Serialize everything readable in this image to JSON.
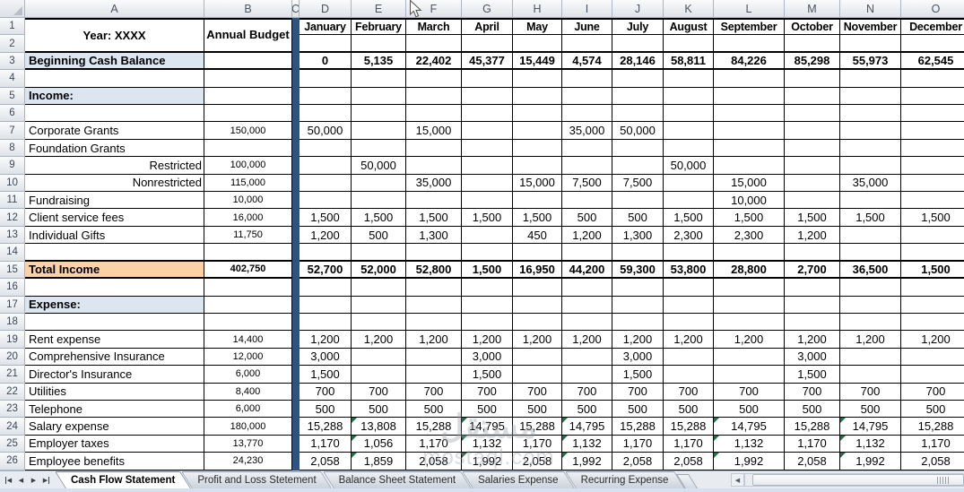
{
  "column_letters": [
    "A",
    "B",
    "C",
    "D",
    "E",
    "F",
    "G",
    "H",
    "I",
    "J",
    "K",
    "L",
    "M",
    "N",
    "O"
  ],
  "row_count": 26,
  "header_box": {
    "year_label": "Year: XXXX",
    "annual_budget_label": "Annual Budget"
  },
  "months": [
    "January",
    "February",
    "March",
    "April",
    "May",
    "June",
    "July",
    "August",
    "September",
    "October",
    "November",
    "December"
  ],
  "sheet_rows": [
    {
      "num": 3,
      "label": "Beginning Cash Balance",
      "style": "balance",
      "budget": "",
      "months": [
        "0",
        "5,135",
        "22,402",
        "45,377",
        "15,449",
        "4,574",
        "28,146",
        "58,811",
        "84,226",
        "85,298",
        "55,973",
        "62,545"
      ]
    },
    {
      "num": 5,
      "label": "Income:",
      "style": "section"
    },
    {
      "num": 7,
      "label": "Corporate Grants",
      "budget": "150,000",
      "months": [
        "50,000",
        "",
        "15,000",
        "",
        "",
        "35,000",
        "50,000",
        "",
        "",
        "",
        "",
        ""
      ]
    },
    {
      "num": 8,
      "label": "Foundation Grants"
    },
    {
      "num": 9,
      "label": "Restricted",
      "align": "right",
      "budget": "100,000",
      "months": [
        "",
        "50,000",
        "",
        "",
        "",
        "",
        "",
        "50,000",
        "",
        "",
        "",
        ""
      ]
    },
    {
      "num": 10,
      "label": "Nonrestricted",
      "align": "right",
      "budget": "115,000",
      "months": [
        "",
        "",
        "35,000",
        "",
        "15,000",
        "7,500",
        "7,500",
        "",
        "15,000",
        "",
        "35,000",
        ""
      ]
    },
    {
      "num": 11,
      "label": "Fundraising",
      "budget": "10,000",
      "months": [
        "",
        "",
        "",
        "",
        "",
        "",
        "",
        "",
        "10,000",
        "",
        "",
        ""
      ]
    },
    {
      "num": 12,
      "label": "Client service fees",
      "budget": "16,000",
      "months": [
        "1,500",
        "1,500",
        "1,500",
        "1,500",
        "1,500",
        "500",
        "500",
        "1,500",
        "1,500",
        "1,500",
        "1,500",
        "1,500"
      ]
    },
    {
      "num": 13,
      "label": "Individual Gifts",
      "budget": "11,750",
      "months": [
        "1,200",
        "500",
        "1,300",
        "",
        "450",
        "1,200",
        "1,300",
        "2,300",
        "2,300",
        "1,200",
        "",
        ""
      ]
    },
    {
      "num": 15,
      "label": "Total Income",
      "style": "total",
      "budget": "402,750",
      "months": [
        "52,700",
        "52,000",
        "52,800",
        "1,500",
        "16,950",
        "44,200",
        "59,300",
        "53,800",
        "28,800",
        "2,700",
        "36,500",
        "1,500"
      ]
    },
    {
      "num": 17,
      "label": "Expense:",
      "style": "section"
    },
    {
      "num": 19,
      "label": "Rent expense",
      "budget": "14,400",
      "months": [
        "1,200",
        "1,200",
        "1,200",
        "1,200",
        "1,200",
        "1,200",
        "1,200",
        "1,200",
        "1,200",
        "1,200",
        "1,200",
        "1,200"
      ]
    },
    {
      "num": 20,
      "label": "Comprehensive Insurance",
      "budget": "12,000",
      "months": [
        "3,000",
        "",
        "",
        "3,000",
        "",
        "",
        "3,000",
        "",
        "",
        "3,000",
        "",
        ""
      ]
    },
    {
      "num": 21,
      "label": "Director's Insurance",
      "budget": "6,000",
      "months": [
        "1,500",
        "",
        "",
        "1,500",
        "",
        "",
        "1,500",
        "",
        "",
        "1,500",
        "",
        ""
      ]
    },
    {
      "num": 22,
      "label": "Utilities",
      "budget": "8,400",
      "months": [
        "700",
        "700",
        "700",
        "700",
        "700",
        "700",
        "700",
        "700",
        "700",
        "700",
        "700",
        "700"
      ]
    },
    {
      "num": 23,
      "label": "Telephone",
      "budget": "6,000",
      "months": [
        "500",
        "500",
        "500",
        "500",
        "500",
        "500",
        "500",
        "500",
        "500",
        "500",
        "500",
        "500"
      ]
    },
    {
      "num": 24,
      "label": "Salary expense",
      "budget": "180,000",
      "months": [
        "15,288",
        "13,808",
        "15,288",
        "14,795",
        "15,288",
        "14,795",
        "15,288",
        "15,288",
        "14,795",
        "15,288",
        "14,795",
        "15,288"
      ],
      "flagged_months": [
        1,
        3,
        5,
        8,
        10
      ]
    },
    {
      "num": 25,
      "label": "Employer taxes",
      "budget": "13,770",
      "months": [
        "1,170",
        "1,056",
        "1,170",
        "1,132",
        "1,170",
        "1,132",
        "1,170",
        "1,170",
        "1,132",
        "1,170",
        "1,132",
        "1,170"
      ],
      "flagged_months": [
        1,
        3,
        5,
        8,
        10
      ]
    },
    {
      "num": 26,
      "label": "Employee benefits",
      "budget": "24,230",
      "months": [
        "2,058",
        "1,859",
        "2,058",
        "1,992",
        "2,058",
        "1,992",
        "2,058",
        "2,058",
        "1,992",
        "2,058",
        "1,992",
        "2,058"
      ],
      "flagged_months": [
        1,
        3,
        5,
        8,
        10
      ]
    }
  ],
  "tabs": {
    "active_index": 0,
    "items": [
      "Cash Flow Statement",
      "Profit and Loss Stetement",
      "Balance Sheet Statement",
      "Salaries Expense",
      "Recurring Expense"
    ],
    "nav_glyphs": [
      "◀",
      "◀",
      "▶",
      "▶"
    ],
    "scroll_left_glyph": "◀"
  },
  "watermark": {
    "arabic": "مستقل",
    "latin": "mostaql.com"
  },
  "colors": {
    "section_fill": "#DCE6F1",
    "total_fill": "#FBD2A6",
    "divider_blue": "#2E5380",
    "flag_green": "#1F7145"
  }
}
